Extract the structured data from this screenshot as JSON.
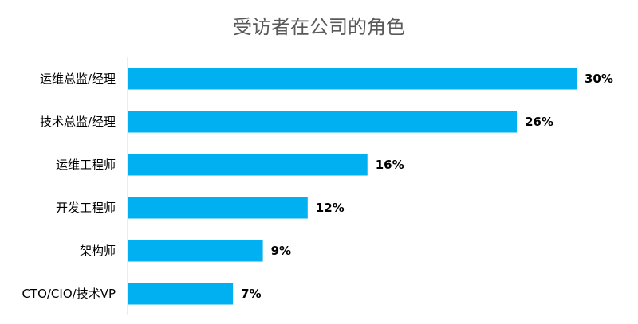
{
  "chart_data": {
    "type": "bar",
    "orientation": "horizontal",
    "title": "受访者在公司的角色",
    "categories": [
      "运维总监/经理",
      "技术总监/经理",
      "运维工程师",
      "开发工程师",
      "架构师",
      "CTO/CIO/技术VP"
    ],
    "values": [
      30,
      26,
      16,
      12,
      9,
      7
    ],
    "value_labels": [
      "30%",
      "26%",
      "16%",
      "12%",
      "9%",
      "7%"
    ],
    "xlim": [
      0,
      30
    ],
    "grid": false,
    "legend": "none",
    "bar_color": "#00B0F0",
    "axis_color": "#D9D9D9"
  }
}
